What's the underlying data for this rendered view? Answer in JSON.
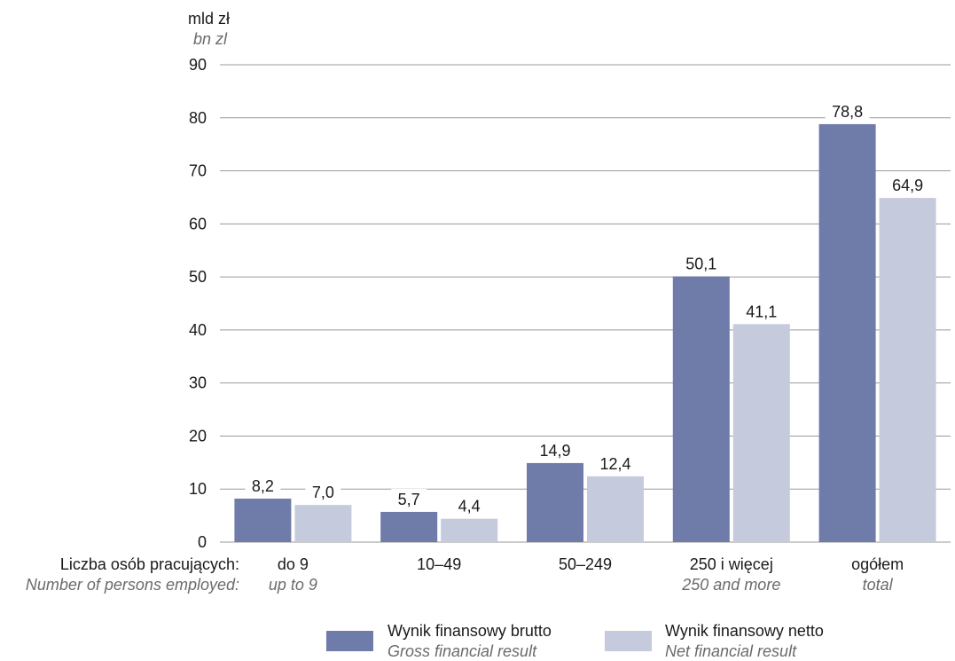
{
  "chart_data": {
    "type": "bar",
    "unit": "mld zł",
    "unit_en": "bn zl",
    "category_axis_label": "Liczba osób pracujących:",
    "category_axis_label_en": "Number of persons employed:",
    "categories": [
      "do 9",
      "10–49",
      "50–249",
      "250 i więcej",
      "ogółem"
    ],
    "categories_en": [
      "up to 9",
      "",
      "",
      "250 and more",
      "total"
    ],
    "series": [
      {
        "name": "Wynik finansowy brutto",
        "name_en": "Gross financial result",
        "color": "#6f7ba8",
        "values": [
          8.2,
          5.7,
          14.9,
          50.1,
          78.8
        ],
        "labels": [
          "8,2",
          "5,7",
          "14,9",
          "50,1",
          "78,8"
        ]
      },
      {
        "name": "Wynik finansowy netto",
        "name_en": "Net financial result",
        "color": "#c6cadd",
        "values": [
          7.0,
          4.4,
          12.4,
          41.1,
          64.9
        ],
        "labels": [
          "7,0",
          "4,4",
          "12,4",
          "41,1",
          "64,9"
        ]
      }
    ],
    "ylim": [
      0,
      90
    ],
    "yticks": [
      0,
      10,
      20,
      30,
      40,
      50,
      60,
      70,
      80,
      90
    ],
    "grid": true,
    "legend_position": "bottom"
  }
}
